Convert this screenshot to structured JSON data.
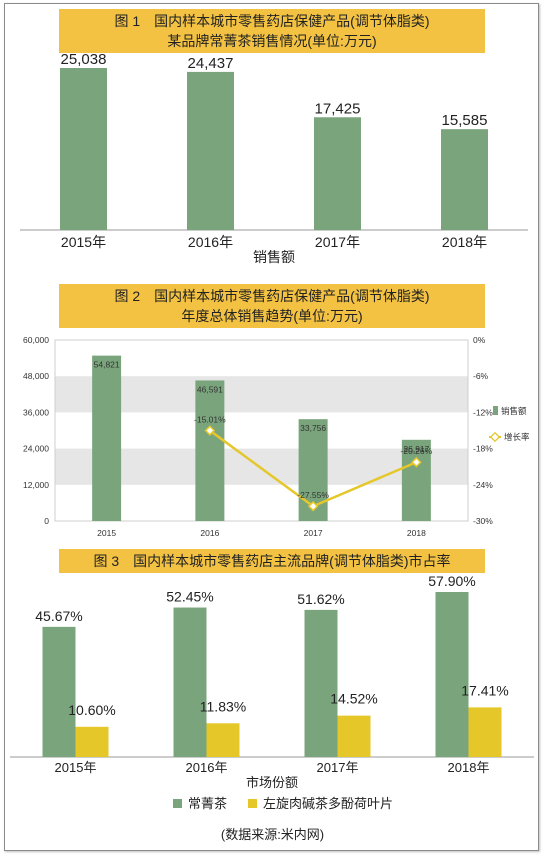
{
  "charts": {
    "c1": {
      "title_line1": "图 1　国内样本城市零售药店保健产品(调节体脂类)",
      "title_line2": "某品牌常菁茶销售情况(单位:万元)",
      "xlabel": "销售额"
    },
    "c2": {
      "title_line1": "图 2　国内样本城市零售药店保健产品(调节体脂类)",
      "title_line2": "年度总体销售趋势(单位:万元)",
      "legend_bar": "销售额",
      "legend_line": "增长率"
    },
    "c3": {
      "title_line1": "图 3　国内样本城市零售药店主流品牌(调节体脂类)市占率",
      "xlabel": "市场份额",
      "legend_a": "常菁茶",
      "legend_b": "左旋肉碱茶多酚荷叶片"
    }
  },
  "source": "(数据来源:米内网)",
  "colors": {
    "green": "#7aa57c",
    "yellow": "#e6c729",
    "title_bg": "#f3c242"
  },
  "chart_data": [
    {
      "type": "bar",
      "title": "图 1　国内样本城市零售药店保健产品(调节体脂类) 某品牌常菁茶销售情况(单位:万元)",
      "xlabel": "销售额",
      "categories": [
        "2015年",
        "2016年",
        "2017年",
        "2018年"
      ],
      "values": [
        25038,
        24437,
        17425,
        15585
      ],
      "value_labels": [
        "25,038",
        "24,437",
        "17,425",
        "15,585"
      ],
      "ylim": [
        0,
        25038
      ],
      "grid": false
    },
    {
      "type": "bar",
      "title": "图 2　国内样本城市零售药店保健产品(调节体脂类) 年度总体销售趋势(单位:万元)",
      "categories": [
        "2015",
        "2016",
        "2017",
        "2018"
      ],
      "series": [
        {
          "name": "销售额",
          "type": "bar",
          "axis": "left",
          "values": [
            54821,
            46591,
            33756,
            26917
          ],
          "labels": [
            "54,821",
            "46,591",
            "33,756",
            "26,917"
          ]
        },
        {
          "name": "增长率",
          "type": "line",
          "axis": "right",
          "values": [
            null,
            -15.01,
            -27.55,
            -20.26
          ],
          "labels": [
            "",
            "-15.01%",
            "-27.55%",
            "-20.26%"
          ]
        }
      ],
      "y_left": {
        "ylim": [
          0,
          60000
        ],
        "ticks": [
          0,
          12000,
          24000,
          36000,
          48000,
          60000
        ],
        "tick_labels": [
          "0",
          "12,000",
          "24,000",
          "36,000",
          "48,000",
          "60,000"
        ]
      },
      "y_right": {
        "ylim": [
          -30,
          0
        ],
        "ticks": [
          0,
          -6,
          -12,
          -18,
          -24,
          -30
        ],
        "tick_labels": [
          "0%",
          "-6%",
          "-12%",
          "-18%",
          "-24%",
          "-30%"
        ]
      },
      "grid": "alternating bands",
      "legend": "right"
    },
    {
      "type": "bar",
      "title": "图 3　国内样本城市零售药店主流品牌(调节体脂类)市占率",
      "xlabel": "市场份额",
      "categories": [
        "2015年",
        "2016年",
        "2017年",
        "2018年"
      ],
      "series": [
        {
          "name": "常菁茶",
          "values": [
            45.67,
            52.45,
            51.62,
            57.9
          ],
          "labels": [
            "45.67%",
            "52.45%",
            "51.62%",
            "57.90%"
          ]
        },
        {
          "name": "左旋肉碱茶多酚荷叶片",
          "values": [
            10.6,
            11.83,
            14.52,
            17.41
          ],
          "labels": [
            "10.60%",
            "11.83%",
            "14.52%",
            "17.41%"
          ]
        }
      ],
      "ylim": [
        0,
        57.9
      ],
      "legend": "bottom"
    }
  ]
}
